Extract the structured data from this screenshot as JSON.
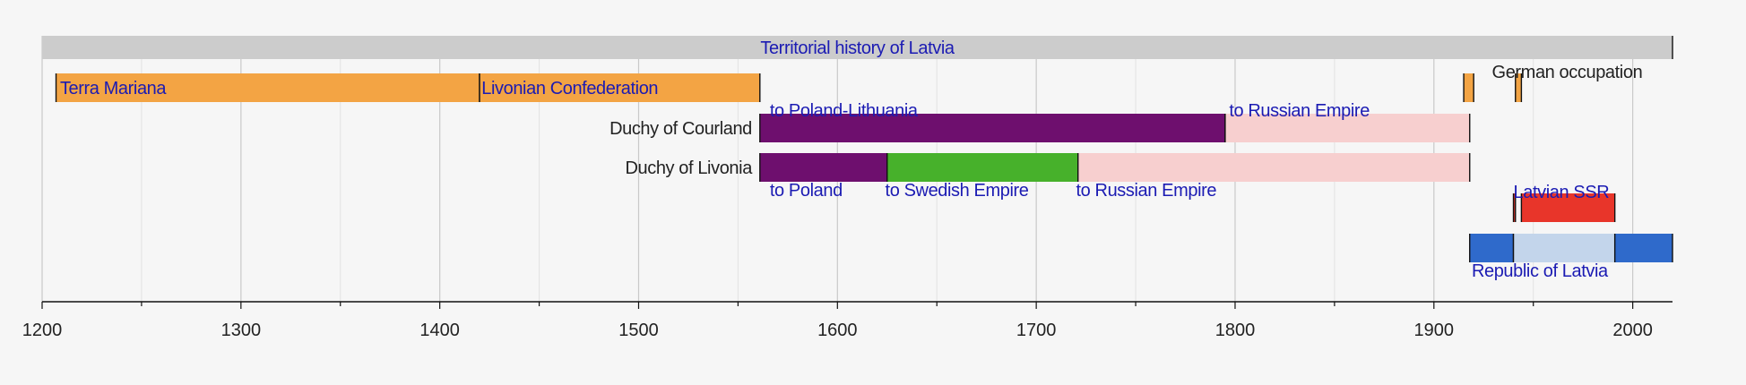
{
  "chart_data": {
    "type": "timeline",
    "title": "Territorial history of Latvia",
    "xlim": [
      1200,
      2020
    ],
    "x_ticks": [
      "1200",
      "1300",
      "1400",
      "1500",
      "1600",
      "1700",
      "1800",
      "1900",
      "2000"
    ],
    "x_minor_step": 50,
    "grid": true,
    "colors": {
      "title_bar": "#cccccc",
      "orange": "#f3a444",
      "purple": "#6e0f6e",
      "pink": "#f7cfcf",
      "green": "#47b12b",
      "red": "#e8352a",
      "blue": "#2f6acb",
      "lightblue": "#c3d5eb",
      "link_text": "#1b1bb3",
      "plain_text": "#222222"
    },
    "bars": [
      {
        "name": "title-bar",
        "row": 0,
        "start": 1200,
        "end": 2020,
        "color": "title_bar"
      },
      {
        "name": "terra-mariana-bar",
        "row": 1,
        "start": 1207,
        "end": 1420,
        "color": "orange"
      },
      {
        "name": "livonian-confederation-bar",
        "row": 1,
        "start": 1420,
        "end": 1561,
        "color": "orange"
      },
      {
        "name": "german-occupation-bar-1",
        "row": 1,
        "start": 1915,
        "end": 1920,
        "color": "orange"
      },
      {
        "name": "german-occupation-bar-2",
        "row": 1,
        "start": 1941,
        "end": 1944,
        "color": "orange"
      },
      {
        "name": "courland-poland-lithuania-bar",
        "row": 2,
        "start": 1561,
        "end": 1795,
        "color": "purple"
      },
      {
        "name": "courland-russian-empire-bar",
        "row": 2,
        "start": 1795,
        "end": 1918,
        "color": "pink"
      },
      {
        "name": "livonia-poland-bar",
        "row": 3,
        "start": 1561,
        "end": 1625,
        "color": "purple"
      },
      {
        "name": "livonia-swedish-empire-bar",
        "row": 3,
        "start": 1625,
        "end": 1721,
        "color": "green"
      },
      {
        "name": "livonia-russian-empire-bar",
        "row": 3,
        "start": 1721,
        "end": 1918,
        "color": "pink"
      },
      {
        "name": "latvian-ssr-bar-1",
        "row": 4,
        "start": 1940,
        "end": 1941,
        "color": "red"
      },
      {
        "name": "latvian-ssr-bar-2",
        "row": 4,
        "start": 1944,
        "end": 1991,
        "color": "red"
      },
      {
        "name": "republic-of-latvia-bar-1",
        "row": 5,
        "start": 1918,
        "end": 1940,
        "color": "blue"
      },
      {
        "name": "republic-of-latvia-occupied-bar",
        "row": 5,
        "start": 1940,
        "end": 1991,
        "color": "lightblue"
      },
      {
        "name": "republic-of-latvia-bar-2",
        "row": 5,
        "start": 1991,
        "end": 2020,
        "color": "blue"
      }
    ],
    "labels": [
      {
        "name": "title-label",
        "text": "Territorial history of Latvia",
        "year": 1610,
        "row": 0,
        "anchor": "middle",
        "link": true,
        "size": 20
      },
      {
        "name": "terra-mariana-label",
        "text": "Terra Mariana",
        "year": 1209,
        "row": 1,
        "anchor": "start",
        "link": true
      },
      {
        "name": "livonian-confederation-label",
        "text": "Livonian Confederation",
        "year": 1421,
        "row": 1,
        "anchor": "start",
        "link": true
      },
      {
        "name": "german-occupation-label",
        "text": "German occupation",
        "year": 1967,
        "row": 0.6,
        "anchor": "middle",
        "link": false
      },
      {
        "name": "to-poland-lithuania-label",
        "text": "to Poland-Lithuania",
        "year": 1566,
        "row": 1.55,
        "anchor": "start",
        "link": true
      },
      {
        "name": "to-russian-empire-courland-label",
        "text": "to Russian Empire",
        "year": 1797,
        "row": 1.55,
        "anchor": "start",
        "link": true
      },
      {
        "name": "duchy-of-courland-label",
        "text": "Duchy of Courland",
        "year": 1557,
        "row": 2,
        "anchor": "end",
        "link": false
      },
      {
        "name": "duchy-of-livonia-label",
        "text": "Duchy of Livonia",
        "year": 1557,
        "row": 3,
        "anchor": "end",
        "link": false
      },
      {
        "name": "to-poland-label",
        "text": "to Poland",
        "year": 1566,
        "row": 3.55,
        "anchor": "start",
        "link": true
      },
      {
        "name": "to-swedish-empire-label",
        "text": "to Swedish Empire",
        "year": 1624,
        "row": 3.55,
        "anchor": "start",
        "link": true
      },
      {
        "name": "to-russian-empire-livonia-label",
        "text": "to Russian Empire",
        "year": 1720,
        "row": 3.55,
        "anchor": "start",
        "link": true
      },
      {
        "name": "latvian-ssr-label",
        "text": "Latvian SSR",
        "year": 1940,
        "row": 3.6,
        "anchor": "start",
        "link": true
      },
      {
        "name": "republic-of-latvia-label",
        "text": "Republic of Latvia",
        "year": 1919,
        "row": 5.55,
        "anchor": "start",
        "link": true
      }
    ]
  }
}
